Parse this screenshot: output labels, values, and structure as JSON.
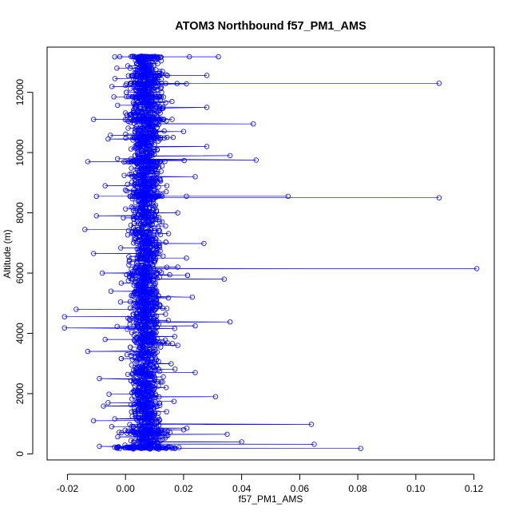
{
  "chart_data": {
    "type": "scatter",
    "title": "ATOM3 Northbound f57_PM1_AMS",
    "xlabel": "f57_PM1_AMS",
    "ylabel": "Altitude (m)",
    "xlim": [
      -0.027,
      0.127
    ],
    "ylim": [
      -200,
      13500
    ],
    "x_ticks": [
      -0.02,
      0.0,
      0.02,
      0.04,
      0.06,
      0.08,
      0.1,
      0.12
    ],
    "x_tick_labels": [
      "-0.02",
      "0.00",
      "0.02",
      "0.04",
      "0.06",
      "0.08",
      "0.10",
      "0.12"
    ],
    "y_ticks": [
      0,
      2000,
      4000,
      6000,
      8000,
      10000,
      12000
    ],
    "y_tick_labels": [
      "0",
      "2000",
      "4000",
      "6000",
      "8000",
      "10000",
      "12000"
    ],
    "grid": false,
    "legend": "none",
    "color": "#0000ff",
    "marker": "open-circle",
    "connected": true,
    "series_points": [
      {
        "x": 0.032,
        "y": 13180
      },
      {
        "x": 0.022,
        "y": 13180
      },
      {
        "x": 0.008,
        "y": 13170
      },
      {
        "x": -0.002,
        "y": 13180
      },
      {
        "x": 0.014,
        "y": 12580
      },
      {
        "x": 0.028,
        "y": 12560
      },
      {
        "x": 0.108,
        "y": 12300
      },
      {
        "x": 0.021,
        "y": 12280
      },
      {
        "x": 0.004,
        "y": 12300
      },
      {
        "x": -0.004,
        "y": 11850
      },
      {
        "x": 0.012,
        "y": 11750
      },
      {
        "x": 0.028,
        "y": 11500
      },
      {
        "x": -0.011,
        "y": 11100
      },
      {
        "x": 0.044,
        "y": 10950
      },
      {
        "x": 0.008,
        "y": 10900
      },
      {
        "x": 0.02,
        "y": 10700
      },
      {
        "x": -0.006,
        "y": 10450
      },
      {
        "x": 0.028,
        "y": 10200
      },
      {
        "x": 0.036,
        "y": 9900
      },
      {
        "x": 0.045,
        "y": 9750
      },
      {
        "x": -0.013,
        "y": 9700
      },
      {
        "x": 0.01,
        "y": 9400
      },
      {
        "x": 0.024,
        "y": 9200
      },
      {
        "x": -0.007,
        "y": 8900
      },
      {
        "x": 0.014,
        "y": 8700
      },
      {
        "x": 0.056,
        "y": 8550
      },
      {
        "x": 0.108,
        "y": 8500
      },
      {
        "x": 0.021,
        "y": 8550
      },
      {
        "x": -0.01,
        "y": 8550
      },
      {
        "x": 0.006,
        "y": 8300
      },
      {
        "x": 0.018,
        "y": 8000
      },
      {
        "x": -0.01,
        "y": 7900
      },
      {
        "x": -0.014,
        "y": 7450
      },
      {
        "x": 0.01,
        "y": 7400
      },
      {
        "x": 0.027,
        "y": 6980
      },
      {
        "x": 0.004,
        "y": 6800
      },
      {
        "x": -0.011,
        "y": 6650
      },
      {
        "x": 0.021,
        "y": 6500
      },
      {
        "x": 0.121,
        "y": 6150
      },
      {
        "x": 0.018,
        "y": 6200
      },
      {
        "x": -0.008,
        "y": 6000
      },
      {
        "x": 0.034,
        "y": 5800
      },
      {
        "x": 0.01,
        "y": 5600
      },
      {
        "x": -0.005,
        "y": 5400
      },
      {
        "x": 0.023,
        "y": 5200
      },
      {
        "x": 0.006,
        "y": 5000
      },
      {
        "x": -0.017,
        "y": 4800
      },
      {
        "x": -0.021,
        "y": 4550
      },
      {
        "x": -0.021,
        "y": 4180
      },
      {
        "x": 0.036,
        "y": 4380
      },
      {
        "x": 0.024,
        "y": 4250
      },
      {
        "x": 0.01,
        "y": 4000
      },
      {
        "x": -0.007,
        "y": 3800
      },
      {
        "x": 0.018,
        "y": 3600
      },
      {
        "x": -0.013,
        "y": 3400
      },
      {
        "x": 0.004,
        "y": 3100
      },
      {
        "x": 0.024,
        "y": 2700
      },
      {
        "x": -0.009,
        "y": 2500
      },
      {
        "x": 0.014,
        "y": 2200
      },
      {
        "x": 0.031,
        "y": 1900
      },
      {
        "x": -0.006,
        "y": 1700
      },
      {
        "x": 0.01,
        "y": 1400
      },
      {
        "x": -0.011,
        "y": 1100
      },
      {
        "x": 0.064,
        "y": 980
      },
      {
        "x": 0.02,
        "y": 800
      },
      {
        "x": 0.003,
        "y": 700
      },
      {
        "x": 0.035,
        "y": 650
      },
      {
        "x": 0.04,
        "y": 400
      },
      {
        "x": 0.065,
        "y": 320
      },
      {
        "x": -0.009,
        "y": 250
      },
      {
        "x": 0.081,
        "y": 180
      },
      {
        "x": 0.014,
        "y": 200
      },
      {
        "x": -0.002,
        "y": 180
      }
    ],
    "dense_band": {
      "center_x": 0.007,
      "y_min": 150,
      "y_max": 13180,
      "note_only_for_rendering": false
    }
  }
}
